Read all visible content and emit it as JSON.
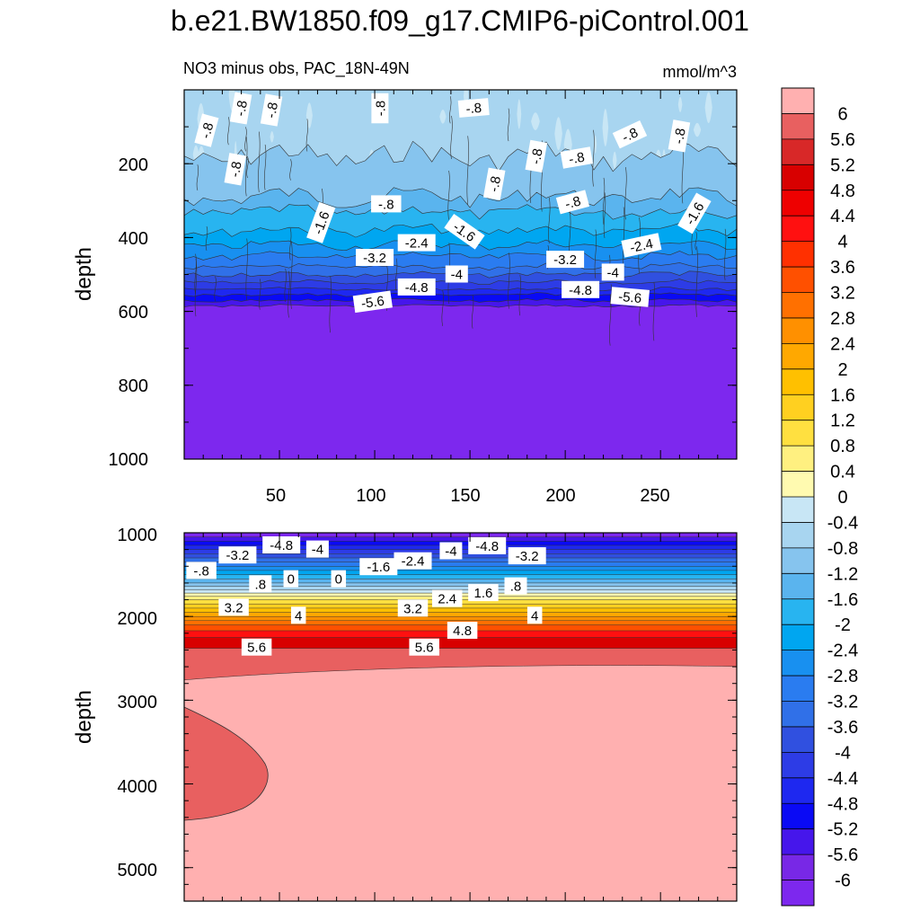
{
  "chart_data": {
    "type": "contour",
    "title": "b.e21.BW1850.f09_g17.CMIP6-piControl.001",
    "colorbar": {
      "levels": [
        "6",
        "5.6",
        "5.2",
        "4.8",
        "4.4",
        "4",
        "3.6",
        "3.2",
        "2.8",
        "2.4",
        "2",
        "1.6",
        "1.2",
        "0.8",
        "0.4",
        "0",
        "-0.4",
        "-0.8",
        "-1.2",
        "-1.6",
        "-2",
        "-2.4",
        "-2.8",
        "-3.2",
        "-3.6",
        "-4",
        "-4.4",
        "-4.8",
        "-5.2",
        "-5.6",
        "-6"
      ],
      "colors": [
        "#ffb0b0",
        "#e86060",
        "#d82828",
        "#d80000",
        "#ee0000",
        "#ff1010",
        "#ff3000",
        "#ff5000",
        "#ff7000",
        "#ff9000",
        "#ffa800",
        "#ffc000",
        "#ffd020",
        "#ffe040",
        "#fff080",
        "#fffab0",
        "#c8e6f5",
        "#a8d5f0",
        "#86c4ee",
        "#5ab4ee",
        "#28b4f0",
        "#00a6f0",
        "#1890f0",
        "#2a7cf0",
        "#3070e8",
        "#3050e0",
        "#2d3ce6",
        "#1e28f0",
        "#0a0af5",
        "#4616eb",
        "#7828e6",
        "#7d28ee"
      ]
    },
    "panels": [
      {
        "name": "upper",
        "subtitle_left": "NO3 minus obs, PAC_18N-49N",
        "subtitle_right": "mmol/m^3",
        "ylabel": "depth",
        "yrange": [
          0,
          1000
        ],
        "yticks": [
          "200",
          "400",
          "600",
          "800",
          "1000"
        ],
        "xrange": [
          0,
          290
        ],
        "xticks": [
          "50",
          "100",
          "150",
          "200",
          "250"
        ],
        "contour_labels": [
          {
            "t": "-.8",
            "x": 12,
            "y": 110,
            "r": -75
          },
          {
            "t": "-.8",
            "x": 30,
            "y": 50,
            "r": -80
          },
          {
            "t": "-.8",
            "x": 46,
            "y": 55,
            "r": -80
          },
          {
            "t": "-.8",
            "x": 103,
            "y": 50,
            "r": -90
          },
          {
            "t": "-.8",
            "x": 152,
            "y": 50,
            "r": -5
          },
          {
            "t": "-.8",
            "x": 27,
            "y": 215,
            "r": -80
          },
          {
            "t": "-.8",
            "x": 185,
            "y": 180,
            "r": -80
          },
          {
            "t": "-.8",
            "x": 206,
            "y": 185,
            "r": -10
          },
          {
            "t": "-.8",
            "x": 163,
            "y": 255,
            "r": -80
          },
          {
            "t": "-.8",
            "x": 106,
            "y": 310,
            "r": 0
          },
          {
            "t": "-.8",
            "x": 204,
            "y": 305,
            "r": -15
          },
          {
            "t": "-.8",
            "x": 234,
            "y": 122,
            "r": -25
          },
          {
            "t": "-.8",
            "x": 260,
            "y": 125,
            "r": -80
          },
          {
            "t": "-1.6",
            "x": 72,
            "y": 360,
            "r": -70
          },
          {
            "t": "-1.6",
            "x": 147,
            "y": 385,
            "r": 35
          },
          {
            "t": "-1.6",
            "x": 268,
            "y": 335,
            "r": -60
          },
          {
            "t": "-2.4",
            "x": 122,
            "y": 415,
            "r": 0
          },
          {
            "t": "-2.4",
            "x": 240,
            "y": 422,
            "r": -12
          },
          {
            "t": "-3.2",
            "x": 100,
            "y": 455,
            "r": 0
          },
          {
            "t": "-3.2",
            "x": 200,
            "y": 460,
            "r": 0
          },
          {
            "t": "-4",
            "x": 143,
            "y": 500,
            "r": 0
          },
          {
            "t": "-4",
            "x": 225,
            "y": 495,
            "r": 0
          },
          {
            "t": "-4.8",
            "x": 122,
            "y": 535,
            "r": 0
          },
          {
            "t": "-4.8",
            "x": 208,
            "y": 542,
            "r": 0
          },
          {
            "t": "-5.6",
            "x": 99,
            "y": 575,
            "r": -8
          },
          {
            "t": "-5.6",
            "x": 234,
            "y": 562,
            "r": 5
          }
        ]
      },
      {
        "name": "lower",
        "ylabel": "depth",
        "yrange": [
          1000,
          5400
        ],
        "yticks": [
          "1000",
          "2000",
          "3000",
          "4000",
          "5000"
        ],
        "xrange": [
          0,
          290
        ],
        "contour_labels": [
          {
            "t": "-4.8",
            "x": 51,
            "y": 1150,
            "r": 0
          },
          {
            "t": "-4",
            "x": 70,
            "y": 1200,
            "r": 0
          },
          {
            "t": "-3.2",
            "x": 28,
            "y": 1270,
            "r": 0
          },
          {
            "t": "-4",
            "x": 140,
            "y": 1220,
            "r": 0
          },
          {
            "t": "-4.8",
            "x": 159,
            "y": 1160,
            "r": 0
          },
          {
            "t": "-3.2",
            "x": 180,
            "y": 1280,
            "r": 0
          },
          {
            "t": ".8",
            "x": 40,
            "y": 1615,
            "r": 0
          },
          {
            "t": "0",
            "x": 56,
            "y": 1555,
            "r": 0
          },
          {
            "t": "0",
            "x": 81,
            "y": 1555,
            "r": 0
          },
          {
            "t": "-1.6",
            "x": 102,
            "y": 1410,
            "r": 0
          },
          {
            "t": "-2.4",
            "x": 120,
            "y": 1340,
            "r": 0
          },
          {
            "t": "-.8",
            "x": 9,
            "y": 1455,
            "r": 0
          },
          {
            "t": "2.4",
            "x": 138,
            "y": 1790,
            "r": 0
          },
          {
            "t": "1.6",
            "x": 157,
            "y": 1720,
            "r": 0
          },
          {
            "t": ".8",
            "x": 174,
            "y": 1640,
            "r": 0
          },
          {
            "t": "3.2",
            "x": 26,
            "y": 1895,
            "r": 0
          },
          {
            "t": "4",
            "x": 60,
            "y": 1990,
            "r": 0
          },
          {
            "t": "3.2",
            "x": 120,
            "y": 1905,
            "r": 0
          },
          {
            "t": "4",
            "x": 184,
            "y": 1990,
            "r": 0
          },
          {
            "t": "4.8",
            "x": 146,
            "y": 2170,
            "r": 0
          },
          {
            "t": "5.6",
            "x": 38,
            "y": 2370,
            "r": 0
          },
          {
            "t": "5.6",
            "x": 126,
            "y": 2370,
            "r": 0
          }
        ]
      }
    ]
  }
}
